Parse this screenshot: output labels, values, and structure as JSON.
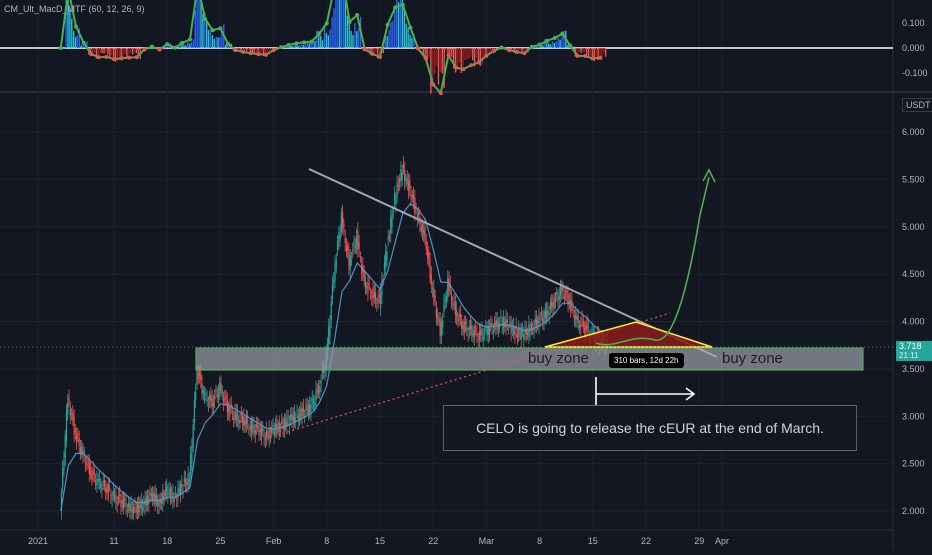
{
  "indicator": {
    "label": "CM_Ult_MacD_MTF (60, 12, 26, 9)",
    "yticks": [
      "0.100",
      "0.000",
      "-0.100"
    ]
  },
  "price_axis": {
    "currency": "USDT",
    "ticks": [
      "6.000",
      "5.500",
      "5.000",
      "4.500",
      "4.000",
      "3.500",
      "3.000",
      "2.500",
      "2.000"
    ],
    "last_price": "3.718",
    "last_price_sub": "21:11"
  },
  "time_axis": {
    "ticks": [
      "2021",
      "11",
      "18",
      "25",
      "Feb",
      "8",
      "15",
      "22",
      "Mar",
      "8",
      "15",
      "22",
      "29",
      "Apr"
    ]
  },
  "annotations": {
    "buy_zone_left": "buy zone",
    "buy_zone_right": "buy zone",
    "bars_range": "310 bars, 12d 22h",
    "note": "CELO is going to release the cEUR at the end of March."
  },
  "colors": {
    "background": "#131722",
    "grid": "#1e222d",
    "up": "#26a69a",
    "down": "#ef5350",
    "ma": "#5b9bd5",
    "zone_fill": "#9598a1",
    "zone_border": "#4caf50",
    "triangle_fill": "#8b1a1a",
    "triangle_border": "#ffeb3b",
    "forecast": "#4caf50",
    "trendline": "#a4a7b0"
  },
  "chart_data": {
    "type": "line",
    "title": "",
    "xlabel": "",
    "ylabel": "USDT",
    "ylim": [
      1.8,
      6.2
    ],
    "x": [
      "2021-01-04",
      "2021-01-05",
      "2021-01-06",
      "2021-01-07",
      "2021-01-08",
      "2021-01-09",
      "2021-01-10",
      "2021-01-11",
      "2021-01-12",
      "2021-01-13",
      "2021-01-14",
      "2021-01-15",
      "2021-01-16",
      "2021-01-17",
      "2021-01-18",
      "2021-01-19",
      "2021-01-20",
      "2021-01-21",
      "2021-01-22",
      "2021-01-23",
      "2021-01-24",
      "2021-01-25",
      "2021-01-26",
      "2021-01-27",
      "2021-01-28",
      "2021-01-29",
      "2021-01-30",
      "2021-01-31",
      "2021-02-01",
      "2021-02-02",
      "2021-02-03",
      "2021-02-04",
      "2021-02-05",
      "2021-02-06",
      "2021-02-07",
      "2021-02-08",
      "2021-02-09",
      "2021-02-10",
      "2021-02-11",
      "2021-02-12",
      "2021-02-13",
      "2021-02-14",
      "2021-02-15",
      "2021-02-16",
      "2021-02-17",
      "2021-02-18",
      "2021-02-19",
      "2021-02-20",
      "2021-02-21",
      "2021-02-22",
      "2021-02-23",
      "2021-02-24",
      "2021-02-25",
      "2021-02-26",
      "2021-02-27",
      "2021-02-28",
      "2021-03-01",
      "2021-03-02",
      "2021-03-03",
      "2021-03-04",
      "2021-03-05",
      "2021-03-06",
      "2021-03-07",
      "2021-03-08",
      "2021-03-09",
      "2021-03-10",
      "2021-03-11",
      "2021-03-12",
      "2021-03-13",
      "2021-03-14",
      "2021-03-15",
      "2021-03-16",
      "2021-03-17"
    ],
    "series": [
      {
        "values": [
          2.0,
          3.2,
          2.8,
          2.6,
          2.4,
          2.3,
          2.25,
          2.15,
          2.1,
          2.05,
          2.0,
          2.1,
          2.15,
          2.1,
          2.2,
          2.15,
          2.25,
          2.35,
          3.5,
          3.2,
          3.15,
          3.3,
          3.1,
          3.0,
          2.95,
          2.9,
          2.85,
          2.8,
          2.85,
          2.9,
          2.95,
          3.0,
          3.05,
          3.1,
          3.3,
          3.6,
          4.5,
          5.1,
          4.6,
          4.9,
          4.4,
          4.3,
          4.2,
          4.8,
          5.3,
          5.6,
          5.4,
          5.1,
          4.9,
          4.3,
          3.9,
          4.4,
          4.1,
          3.95,
          3.9,
          3.85,
          3.9,
          3.95,
          4.0,
          3.95,
          3.9,
          3.85,
          3.95,
          4.0,
          4.1,
          4.2,
          4.35,
          4.2,
          4.0,
          3.95,
          3.85,
          3.8,
          3.75
        ]
      }
    ]
  }
}
